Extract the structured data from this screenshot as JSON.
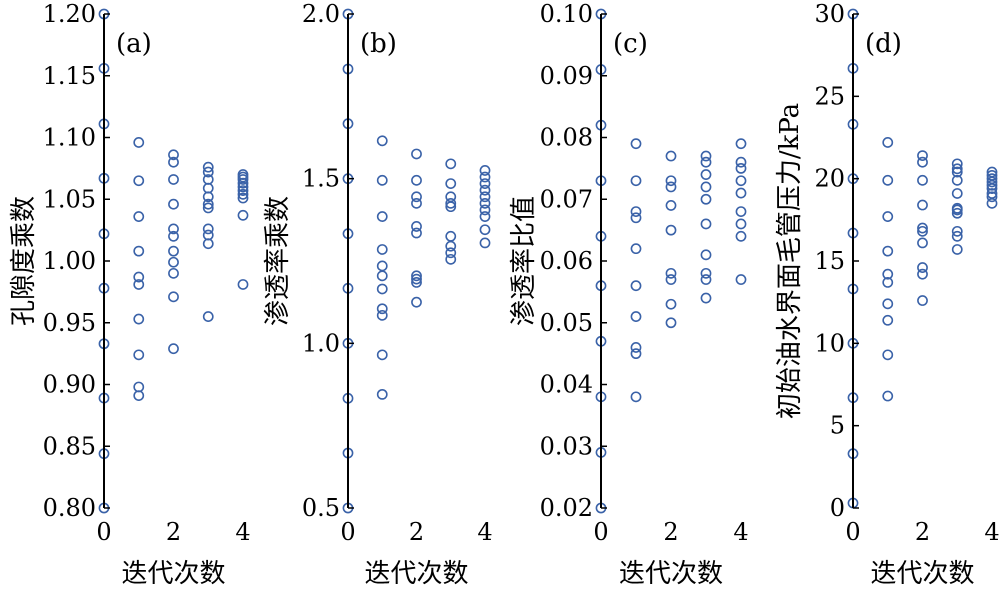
{
  "chart_data": [
    {
      "type": "scatter",
      "panel_label": "(a)",
      "xlabel": "迭代次数",
      "ylabel": "孔隙度乘数",
      "xlim": [
        0,
        4
      ],
      "ylim": [
        0.8,
        1.2
      ],
      "xticks": [
        "0",
        "2",
        "4"
      ],
      "yticks": [
        "0.80",
        "0.85",
        "0.90",
        "0.95",
        "1.00",
        "1.05",
        "1.10",
        "1.15",
        "1.20"
      ],
      "marker_color": "#3a62a8",
      "series": [
        {
          "x": 0,
          "values": [
            1.2,
            1.156,
            1.111,
            1.067,
            1.022,
            0.978,
            0.933,
            0.889,
            0.844,
            0.8
          ]
        },
        {
          "x": 1,
          "values": [
            1.096,
            1.065,
            1.036,
            1.008,
            0.987,
            0.981,
            0.953,
            0.924,
            0.898,
            0.891
          ]
        },
        {
          "x": 2,
          "values": [
            1.086,
            1.08,
            1.066,
            1.046,
            1.026,
            1.02,
            1.008,
            0.999,
            0.99,
            0.971,
            0.929
          ]
        },
        {
          "x": 3,
          "values": [
            1.076,
            1.072,
            1.066,
            1.059,
            1.052,
            1.046,
            1.043,
            1.026,
            1.021,
            1.014,
            0.955
          ]
        },
        {
          "x": 4,
          "values": [
            1.07,
            1.068,
            1.066,
            1.063,
            1.06,
            1.057,
            1.054,
            1.051,
            1.037,
            0.981
          ]
        }
      ]
    },
    {
      "type": "scatter",
      "panel_label": "(b)",
      "xlabel": "迭代次数",
      "ylabel": "渗透率乘数",
      "xlim": [
        0,
        4
      ],
      "ylim": [
        0.5,
        2.0
      ],
      "xticks": [
        "0",
        "2",
        "4"
      ],
      "yticks": [
        "0.5",
        "1.0",
        "1.5",
        "2.0"
      ],
      "marker_color": "#3a62a8",
      "series": [
        {
          "x": 0,
          "values": [
            2.0,
            1.833,
            1.667,
            1.5,
            1.333,
            1.167,
            1.0,
            0.833,
            0.667,
            0.5
          ]
        },
        {
          "x": 1,
          "values": [
            1.615,
            1.495,
            1.385,
            1.285,
            1.235,
            1.205,
            1.165,
            1.105,
            1.085,
            0.965,
            0.845
          ]
        },
        {
          "x": 2,
          "values": [
            1.575,
            1.495,
            1.445,
            1.425,
            1.355,
            1.335,
            1.205,
            1.195,
            1.185,
            1.125
          ]
        },
        {
          "x": 3,
          "values": [
            1.545,
            1.485,
            1.445,
            1.425,
            1.415,
            1.325,
            1.295,
            1.275,
            1.255
          ]
        },
        {
          "x": 4,
          "values": [
            1.525,
            1.505,
            1.485,
            1.465,
            1.445,
            1.425,
            1.405,
            1.385,
            1.345,
            1.305
          ]
        }
      ]
    },
    {
      "type": "scatter",
      "panel_label": "(c)",
      "xlabel": "",
      "ylabel": "渗透率比值",
      "xlim": [
        0,
        4
      ],
      "ylim": [
        0.02,
        0.1
      ],
      "xticks": [
        "0",
        "2",
        "4"
      ],
      "yticks": [
        "0.02",
        "0.03",
        "0.04",
        "0.05",
        "0.06",
        "0.07",
        "0.08",
        "0.09",
        "0.10"
      ],
      "marker_color": "#3a62a8",
      "series": [
        {
          "x": 0,
          "values": [
            0.1,
            0.091,
            0.082,
            0.073,
            0.064,
            0.056,
            0.047,
            0.038,
            0.029,
            0.02
          ]
        },
        {
          "x": 1,
          "values": [
            0.079,
            0.073,
            0.068,
            0.067,
            0.062,
            0.056,
            0.051,
            0.046,
            0.045,
            0.038
          ]
        },
        {
          "x": 2,
          "values": [
            0.077,
            0.073,
            0.072,
            0.069,
            0.065,
            0.058,
            0.057,
            0.053,
            0.05
          ]
        },
        {
          "x": 3,
          "values": [
            0.077,
            0.076,
            0.074,
            0.072,
            0.07,
            0.066,
            0.061,
            0.058,
            0.057,
            0.054
          ]
        },
        {
          "x": 4,
          "values": [
            0.079,
            0.076,
            0.075,
            0.073,
            0.071,
            0.068,
            0.066,
            0.064,
            0.057
          ]
        }
      ]
    },
    {
      "type": "scatter",
      "panel_label": "(d)",
      "xlabel": "迭代次数",
      "ylabel": "初始油水界面毛管压力/kPa",
      "xlim": [
        0,
        4
      ],
      "ylim": [
        0,
        30
      ],
      "xticks": [
        "0",
        "2",
        "4"
      ],
      "yticks": [
        "0",
        "5",
        "10",
        "15",
        "20",
        "25",
        "30"
      ],
      "marker_color": "#3a62a8",
      "series": [
        {
          "x": 0,
          "values": [
            30.0,
            26.7,
            23.3,
            20.0,
            16.7,
            13.3,
            10.0,
            6.7,
            3.3,
            0.3
          ]
        },
        {
          "x": 1,
          "values": [
            22.2,
            19.9,
            17.7,
            15.6,
            14.2,
            13.7,
            12.4,
            11.4,
            9.3,
            6.8
          ]
        },
        {
          "x": 2,
          "values": [
            21.4,
            21.0,
            19.9,
            18.4,
            17.0,
            16.8,
            16.1,
            14.6,
            14.2,
            12.6
          ]
        },
        {
          "x": 3,
          "values": [
            20.9,
            20.6,
            20.4,
            19.9,
            19.1,
            18.2,
            18.1,
            17.9,
            16.8,
            16.5,
            15.7
          ]
        },
        {
          "x": 4,
          "values": [
            20.4,
            20.2,
            20.0,
            19.8,
            19.6,
            19.4,
            19.1,
            18.9,
            18.5
          ]
        }
      ]
    }
  ],
  "shared_xlabel": "迭代次数"
}
